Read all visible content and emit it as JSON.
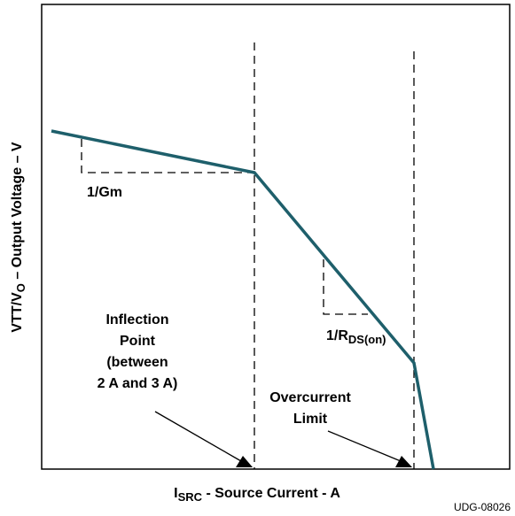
{
  "y_axis_label": {
    "main": "VTT/V",
    "sub": "O",
    "rest": " – Output Voltage – V"
  },
  "x_axis_label": {
    "main": "I",
    "sub": "SRC",
    "rest": " - Source Current - A"
  },
  "slope_labels": {
    "gm": "1/Gm",
    "rds": {
      "main": "1/R",
      "sub": "DS(on)"
    }
  },
  "annotations": {
    "inflection": [
      "Inflection",
      "Point",
      "(between",
      "2 A and 3 A)"
    ],
    "overcurrent": [
      "Overcurrent",
      "Limit"
    ]
  },
  "figure_id": "UDG-08026"
}
